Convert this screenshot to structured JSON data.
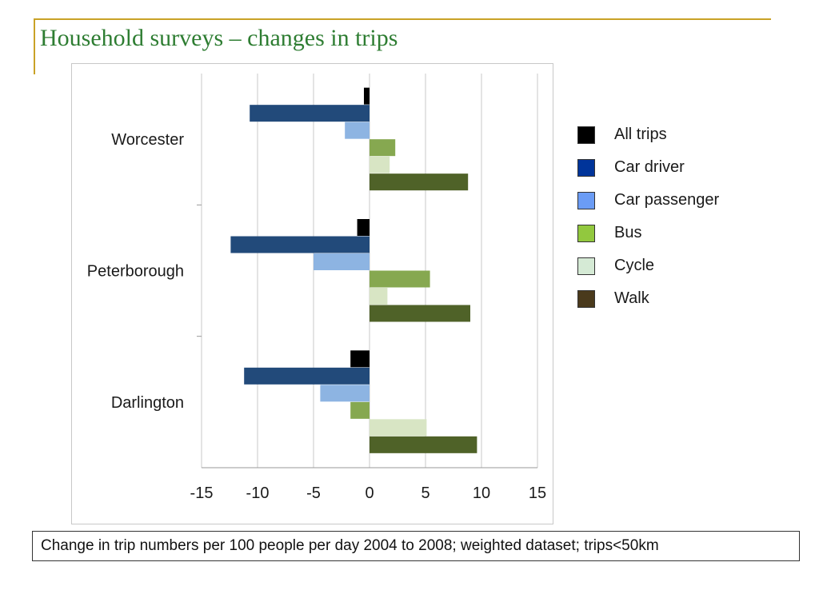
{
  "slide": {
    "title": "Household surveys – changes in trips",
    "accent_color": "#c9a227",
    "title_color": "#2e7d32"
  },
  "caption": "Change in trip numbers per 100 people per day 2004 to 2008; weighted dataset; trips<50km",
  "chart_data": {
    "type": "bar",
    "orientation": "horizontal",
    "categories": [
      "Worcester",
      "Peterborough",
      "Darlington"
    ],
    "series": [
      {
        "name": "All trips",
        "color": "#000000",
        "legend_color": "#000000",
        "values": [
          -0.5,
          -1.1,
          -1.7
        ]
      },
      {
        "name": "Car driver",
        "color": "#224a7a",
        "legend_color": "#00349a",
        "values": [
          -10.7,
          -12.4,
          -11.2
        ]
      },
      {
        "name": "Car passenger",
        "color": "#8db4e2",
        "legend_color": "#6b9cf5",
        "values": [
          -2.2,
          -5.0,
          -4.4
        ]
      },
      {
        "name": "Bus",
        "color": "#86a850",
        "legend_color": "#92c83e",
        "values": [
          2.3,
          5.4,
          -1.7
        ]
      },
      {
        "name": "Cycle",
        "color": "#d8e5c4",
        "legend_color": "#d5ead5",
        "values": [
          1.8,
          1.6,
          5.1
        ]
      },
      {
        "name": "Walk",
        "color": "#4f6228",
        "legend_color": "#4a3a1c",
        "values": [
          8.8,
          9.0,
          9.6
        ]
      }
    ],
    "xlim": [
      -15,
      15
    ],
    "xticks": [
      -15,
      -10,
      -5,
      0,
      5,
      10,
      15
    ],
    "xtick_labels": [
      "-15",
      "-10",
      "-5",
      "0",
      "5",
      "10",
      "15"
    ],
    "grid": true,
    "legend_position": "right"
  }
}
